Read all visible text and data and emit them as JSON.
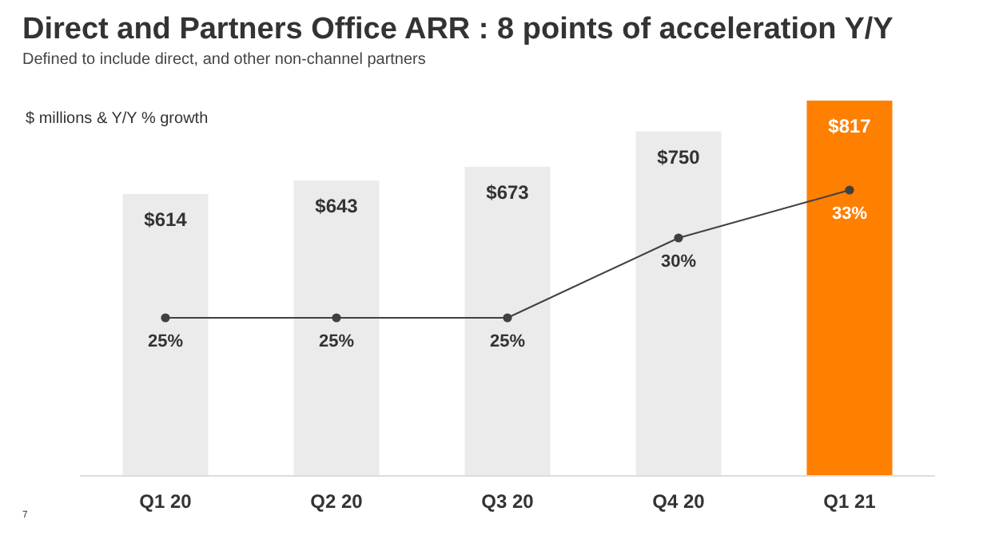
{
  "chart_data": {
    "type": "bar",
    "title": "Direct and Partners Office ARR : 8 points of acceleration Y/Y",
    "subtitle": "Defined to include direct, and other non-channel partners",
    "ylabel": "$ millions & Y/Y % growth",
    "annotations": [
      "7"
    ],
    "categories": [
      "Q1 20",
      "Q2 20",
      "Q3 20",
      "Q4 20",
      "Q1 21"
    ],
    "tick_labels": "x",
    "marker": "circle",
    "line_style": "solid",
    "series": [
      {
        "colors": [
          "#ebebeb",
          "#ebebeb",
          "#ebebeb",
          "#ebebeb",
          "#ff7f00"
        ],
        "values": [
          614,
          643,
          673,
          750,
          817
        ],
        "value_labels": [
          "$614",
          "$643",
          "$673",
          "$750",
          "$817"
        ]
      },
      {
        "type": "line",
        "axis": "y2",
        "color": "#404040",
        "values": [
          25,
          25,
          25,
          30,
          33
        ],
        "value_labels": [
          "25%",
          "25%",
          "25%",
          "30%",
          "33%"
        ]
      }
    ]
  }
}
